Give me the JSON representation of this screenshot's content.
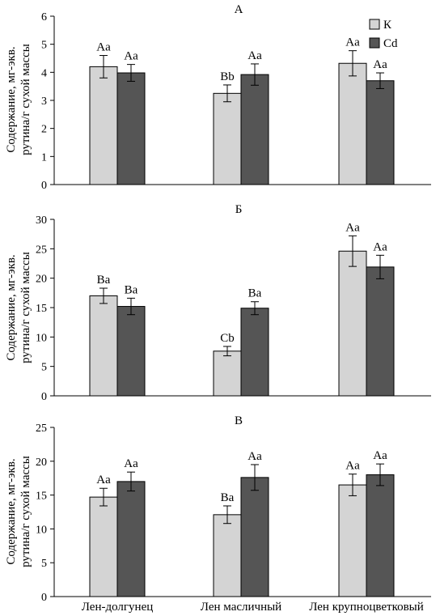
{
  "figure": {
    "ylabel_line1": "Содержание, мг-экв.",
    "ylabel_line2": "рутина/г сухой массы"
  },
  "legend": {
    "entries": [
      {
        "name": "К",
        "color": "#d4d4d4"
      },
      {
        "name": "Cd",
        "color": "#555555"
      }
    ]
  },
  "colors": {
    "control": "#d4d4d4",
    "cadmium": "#555555",
    "axis": "#000000"
  },
  "chart_data": [
    {
      "type": "bar",
      "panel": "А",
      "title": "А",
      "categories": [
        "Лен-долгунец",
        "Лен масличный",
        "Лен крупноцветковый"
      ],
      "ylim": [
        0,
        6
      ],
      "yticks": [
        0,
        1,
        2,
        3,
        4,
        5,
        6
      ],
      "grid": false,
      "legend_position": "top-right",
      "series": [
        {
          "name": "К",
          "values": [
            4.2,
            3.25,
            4.32
          ],
          "errors": [
            0.4,
            0.3,
            0.45
          ],
          "labels": [
            "Aa",
            "Bb",
            "Aa"
          ]
        },
        {
          "name": "Cd",
          "values": [
            3.98,
            3.92,
            3.7
          ],
          "errors": [
            0.3,
            0.38,
            0.28
          ],
          "labels": [
            "Aa",
            "Aa",
            "Aa"
          ]
        }
      ]
    },
    {
      "type": "bar",
      "panel": "Б",
      "title": "Б",
      "categories": [
        "Лен-долгунец",
        "Лен масличный",
        "Лен крупноцветковый"
      ],
      "ylim": [
        0,
        30
      ],
      "yticks": [
        0,
        5,
        10,
        15,
        20,
        25,
        30
      ],
      "grid": false,
      "series": [
        {
          "name": "К",
          "values": [
            17.0,
            7.6,
            24.6
          ],
          "errors": [
            1.3,
            0.8,
            2.6
          ],
          "labels": [
            "Ba",
            "Cb",
            "Aa"
          ]
        },
        {
          "name": "Cd",
          "values": [
            15.2,
            14.9,
            21.9
          ],
          "errors": [
            1.4,
            1.1,
            2.0
          ],
          "labels": [
            "Ba",
            "Ba",
            "Aa"
          ]
        }
      ]
    },
    {
      "type": "bar",
      "panel": "В",
      "title": "В",
      "categories": [
        "Лен-долгунец",
        "Лен масличный",
        "Лен крупноцветковый"
      ],
      "ylim": [
        0,
        25
      ],
      "yticks": [
        0,
        5,
        10,
        15,
        20,
        25
      ],
      "grid": false,
      "series": [
        {
          "name": "К",
          "values": [
            14.7,
            12.1,
            16.5
          ],
          "errors": [
            1.3,
            1.3,
            1.6
          ],
          "labels": [
            "Aa",
            "Ba",
            "Aa"
          ]
        },
        {
          "name": "Cd",
          "values": [
            17.0,
            17.6,
            18.0
          ],
          "errors": [
            1.4,
            1.9,
            1.6
          ],
          "labels": [
            "Aa",
            "Aa",
            "Aa"
          ]
        }
      ]
    }
  ]
}
